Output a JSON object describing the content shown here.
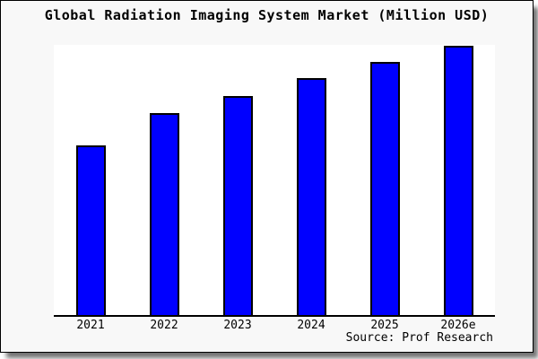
{
  "title": "Global Radiation Imaging System Market (Million USD)",
  "source": "Source: Prof Research",
  "colors": {
    "bar_fill": "#0000FF",
    "bar_border": "#000000",
    "panel_bg": "#F8F8F8",
    "plot_bg": "#FFFFFF",
    "axis": "#000000"
  },
  "chart_data": {
    "type": "bar",
    "title": "Global Radiation Imaging System Market (Million USD)",
    "categories": [
      "2021",
      "2022",
      "2023",
      "2024",
      "2025",
      "2026e"
    ],
    "values": [
      63,
      75,
      81.5,
      88,
      94,
      100
    ],
    "value_note": "no y-axis scale shown; values are relative bar heights normalized to 2026e = 100",
    "xlabel": "",
    "ylabel": "",
    "ylim": [
      0,
      100
    ],
    "grid": false,
    "legend": null,
    "source": "Source: Prof Research"
  }
}
